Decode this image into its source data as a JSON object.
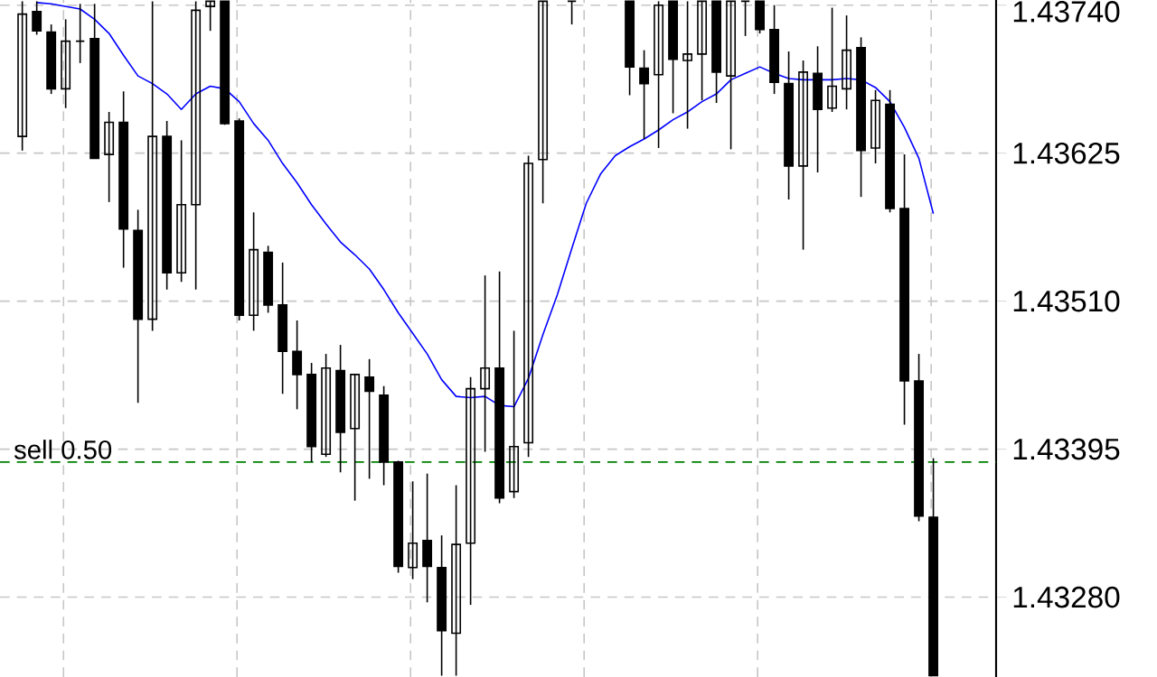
{
  "chart_data": {
    "type": "candlestick",
    "categories": [
      null,
      null,
      null,
      null,
      null,
      null,
      null,
      null,
      null,
      null,
      null,
      null,
      null,
      null,
      null,
      null,
      null,
      null,
      null,
      null,
      null,
      null,
      null,
      null,
      null,
      null,
      null,
      null,
      null,
      null,
      null,
      null,
      null,
      null,
      null,
      null,
      null,
      null,
      null,
      null,
      null,
      null,
      null,
      null,
      null,
      null,
      null,
      null,
      null,
      null,
      null,
      null,
      null,
      null,
      null,
      null,
      null,
      null,
      null,
      null,
      null,
      null,
      null,
      null
    ],
    "ohlc": [
      [
        1.43638,
        1.43743,
        1.43627,
        1.43733
      ],
      [
        1.43735,
        1.43743,
        1.43717,
        1.4372
      ],
      [
        1.43719,
        1.43725,
        1.43671,
        1.43675
      ],
      [
        1.43675,
        1.43729,
        1.4366,
        1.43712
      ],
      [
        1.43712,
        1.43741,
        1.43695,
        1.43712
      ],
      [
        1.43714,
        1.43741,
        1.43621,
        1.43621
      ],
      [
        1.43624,
        1.43657,
        1.43587,
        1.43649
      ],
      [
        1.43649,
        1.43673,
        1.43536,
        1.43566
      ],
      [
        1.43565,
        1.43581,
        1.43431,
        1.43496
      ],
      [
        1.43496,
        1.43743,
        1.43487,
        1.43638
      ],
      [
        1.43638,
        1.4365,
        1.43519,
        1.43532
      ],
      [
        1.43532,
        1.43635,
        1.43525,
        1.43585
      ],
      [
        1.43585,
        1.43743,
        1.43519,
        1.43736
      ],
      [
        1.43739,
        1.43743,
        1.4372,
        1.43743
      ],
      [
        1.43743,
        1.43743,
        1.43647,
        1.43648
      ],
      [
        1.4365,
        1.43652,
        1.43495,
        1.43499
      ],
      [
        1.43499,
        1.43579,
        1.43487,
        1.4355
      ],
      [
        1.43548,
        1.43553,
        1.43501,
        1.43507
      ],
      [
        1.43507,
        1.4354,
        1.43438,
        1.43471
      ],
      [
        1.43471,
        1.43495,
        1.43426,
        1.43453
      ],
      [
        1.43453,
        1.43462,
        1.43385,
        1.43397
      ],
      [
        1.43391,
        1.43469,
        1.43389,
        1.43458
      ],
      [
        1.43456,
        1.43476,
        1.43377,
        1.43408
      ],
      [
        1.43411,
        1.43453,
        1.43355,
        1.43453
      ],
      [
        1.43451,
        1.43465,
        1.43372,
        1.4344
      ],
      [
        1.43437,
        1.43444,
        1.43367,
        1.43385
      ],
      [
        1.43385,
        1.43386,
        1.43299,
        1.43304
      ],
      [
        1.43303,
        1.4337,
        1.43294,
        1.43322
      ],
      [
        1.43324,
        1.43376,
        1.43276,
        1.43304
      ],
      [
        1.43303,
        1.43328,
        1.43219,
        1.43254
      ],
      [
        1.43252,
        1.43367,
        1.43219,
        1.43321
      ],
      [
        1.43322,
        1.43451,
        1.43274,
        1.43442
      ],
      [
        1.43442,
        1.4353,
        1.43393,
        1.43458
      ],
      [
        1.43458,
        1.43533,
        1.43353,
        1.43357
      ],
      [
        1.43362,
        1.43487,
        1.43357,
        1.43397
      ],
      [
        1.434,
        1.43623,
        1.43389,
        1.43617
      ],
      [
        1.4362,
        1.43743,
        1.43586,
        1.43743
      ],
      null,
      [
        1.43743,
        1.43743,
        1.43725,
        1.43743
      ],
      null,
      null,
      null,
      [
        1.43743,
        1.43743,
        1.4367,
        1.43692
      ],
      [
        1.43691,
        1.43705,
        1.43636,
        1.43679
      ],
      [
        1.43686,
        1.43743,
        1.43629,
        1.4374
      ],
      [
        1.43743,
        1.43743,
        1.43656,
        1.43698
      ],
      [
        1.43697,
        1.43743,
        1.43644,
        1.43702
      ],
      [
        1.43702,
        1.43743,
        1.43666,
        1.43743
      ],
      [
        1.43743,
        1.43743,
        1.43664,
        1.43688
      ],
      [
        1.43685,
        1.43743,
        1.43628,
        1.43743
      ],
      [
        1.43743,
        1.43743,
        1.43716,
        1.43743
      ],
      [
        1.43743,
        1.43743,
        1.43718,
        1.43721
      ],
      [
        1.43721,
        1.4374,
        1.43671,
        1.4368
      ],
      [
        1.43679,
        1.43704,
        1.43589,
        1.43615
      ],
      [
        1.43615,
        1.43697,
        1.4355,
        1.43688
      ],
      [
        1.43687,
        1.43708,
        1.4361,
        1.43659
      ],
      [
        1.4366,
        1.43738,
        1.43657,
        1.43677
      ],
      [
        1.43675,
        1.43732,
        1.43659,
        1.43705
      ],
      [
        1.43707,
        1.43715,
        1.43591,
        1.43627
      ],
      [
        1.43629,
        1.43674,
        1.43617,
        1.43666
      ],
      [
        1.43663,
        1.43674,
        1.43579,
        1.43582
      ],
      [
        1.43582,
        1.43624,
        1.43414,
        1.43448
      ],
      [
        1.43448,
        1.43469,
        1.43339,
        1.43343
      ],
      [
        1.43342,
        1.43388,
        1.43219,
        1.43219
      ]
    ],
    "series": [
      {
        "type": "line",
        "color": "#0000ff",
        "values": [
          null,
          1.43742,
          1.43741,
          1.43739,
          1.43737,
          1.43729,
          1.43718,
          1.43701,
          1.43685,
          1.43679,
          1.43671,
          1.43659,
          1.43671,
          1.43677,
          1.43675,
          1.43665,
          1.43648,
          1.43635,
          1.43617,
          1.43602,
          1.43585,
          1.4357,
          1.43556,
          1.43546,
          1.43535,
          1.43519,
          1.43501,
          1.43485,
          1.43469,
          1.43449,
          1.43436,
          1.43435,
          1.43436,
          1.43429,
          1.43428,
          1.4345,
          1.43484,
          1.43515,
          1.43551,
          1.43586,
          1.43609,
          1.43623,
          1.4363,
          1.43636,
          1.43643,
          1.43651,
          1.43657,
          1.43665,
          1.43671,
          1.43682,
          1.43687,
          1.43692,
          1.43687,
          1.43683,
          1.43682,
          1.43682,
          1.43682,
          1.43683,
          1.43682,
          1.43676,
          1.43665,
          1.43645,
          1.43621,
          1.43578
        ]
      }
    ],
    "ylim": [
      1.43218,
      1.43744
    ],
    "yticks": [
      {
        "value": 1.4328,
        "label": "1.43280"
      },
      1.43395,
      {
        "value": 1.4351,
        "label": "1.43510"
      },
      1.43625,
      {
        "value": 1.4374,
        "label": "1.43740"
      }
    ],
    "ref_lines": [
      {
        "axis": "y",
        "value": 1.43385,
        "label": "sell 0.50",
        "color": "#008000",
        "line_style": "dashed"
      }
    ],
    "grid": true,
    "tick_labels": "y"
  }
}
